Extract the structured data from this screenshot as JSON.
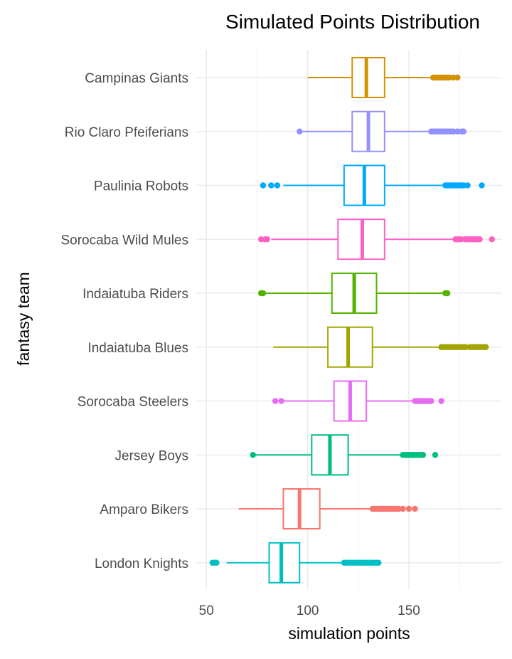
{
  "chart_data": {
    "type": "boxplot",
    "title": "Simulated Points Distribution",
    "xlabel": "simulation points",
    "ylabel": "fantasy team",
    "xlim": [
      45,
      196
    ],
    "x_ticks": [
      50,
      100,
      150
    ],
    "grid": true,
    "legend": "none",
    "categories": [
      "Campinas Giants",
      "Rio Claro Pfeiferians",
      "Paulinia Robots",
      "Sorocaba Wild Mules",
      "Indaiatuba Riders",
      "Indaiatuba Blues",
      "Sorocaba Steelers",
      "Jersey Boys",
      "Amparo Bikers",
      "London Knights"
    ],
    "series": [
      {
        "team": "Campinas Giants",
        "color": "#D39200",
        "whisker_low": 100,
        "q1": 122,
        "median": 129,
        "q3": 138,
        "whisker_high": 161,
        "outliers": [
          162,
          163,
          164,
          165,
          166,
          167,
          168,
          169,
          170,
          172,
          174
        ]
      },
      {
        "team": "Rio Claro Pfeiferians",
        "color": "#9590FF",
        "whisker_low": 96,
        "q1": 122,
        "median": 130,
        "q3": 138,
        "whisker_high": 160,
        "outliers": [
          96,
          161,
          162,
          163,
          164,
          165,
          166,
          167,
          168,
          169,
          170,
          171,
          172,
          174,
          176,
          177
        ]
      },
      {
        "team": "Paulinia Robots",
        "color": "#00A9FF",
        "whisker_low": 88,
        "q1": 118,
        "median": 128,
        "q3": 138,
        "whisker_high": 167,
        "outliers": [
          78,
          82,
          85,
          168,
          169,
          170,
          171,
          172,
          173,
          174,
          175,
          176,
          177,
          179,
          186
        ]
      },
      {
        "team": "Sorocaba Wild Mules",
        "color": "#FF61C3",
        "whisker_low": 82,
        "q1": 115,
        "median": 127,
        "q3": 138,
        "whisker_high": 172,
        "outliers": [
          77,
          79,
          80,
          173,
          174,
          175,
          176,
          178,
          179,
          180,
          181,
          182,
          183,
          184,
          185,
          191
        ]
      },
      {
        "team": "Indaiatuba Riders",
        "color": "#53B400",
        "whisker_low": 78,
        "q1": 112,
        "median": 123,
        "q3": 134,
        "whisker_high": 167,
        "outliers": [
          77,
          78,
          168,
          169
        ]
      },
      {
        "team": "Indaiatuba Blues",
        "color": "#A3A500",
        "whisker_low": 83,
        "q1": 110,
        "median": 120,
        "q3": 132,
        "whisker_high": 165,
        "outliers": [
          166,
          167,
          168,
          169,
          170,
          171,
          172,
          173,
          174,
          175,
          176,
          177,
          178,
          180,
          181,
          182,
          183,
          184,
          185,
          186,
          187,
          188
        ]
      },
      {
        "team": "Sorocaba Steelers",
        "color": "#E76BF3",
        "whisker_low": 88,
        "q1": 113,
        "median": 121,
        "q3": 129,
        "whisker_high": 152,
        "outliers": [
          84,
          87,
          153,
          154,
          155,
          156,
          157,
          158,
          159,
          160,
          161,
          166
        ]
      },
      {
        "team": "Jersey Boys",
        "color": "#00BF7D",
        "whisker_low": 74,
        "q1": 102,
        "median": 111,
        "q3": 120,
        "whisker_high": 146,
        "outliers": [
          73,
          147,
          148,
          149,
          150,
          151,
          152,
          153,
          154,
          155,
          156,
          157,
          163
        ]
      },
      {
        "team": "Amparo Bikers",
        "color": "#F8766D",
        "whisker_low": 66,
        "q1": 88,
        "median": 96,
        "q3": 106,
        "whisker_high": 131,
        "outliers": [
          132,
          133,
          134,
          135,
          136,
          137,
          138,
          139,
          140,
          141,
          142,
          143,
          144,
          145,
          147,
          150,
          153
        ]
      },
      {
        "team": "London Knights",
        "color": "#00BFC4",
        "whisker_low": 60,
        "q1": 81,
        "median": 87,
        "q3": 96,
        "whisker_high": 117,
        "outliers": [
          53,
          54,
          55,
          118,
          119,
          120,
          121,
          122,
          123,
          124,
          125,
          126,
          127,
          128,
          129,
          130,
          131,
          132,
          133,
          134,
          135
        ]
      }
    ]
  }
}
